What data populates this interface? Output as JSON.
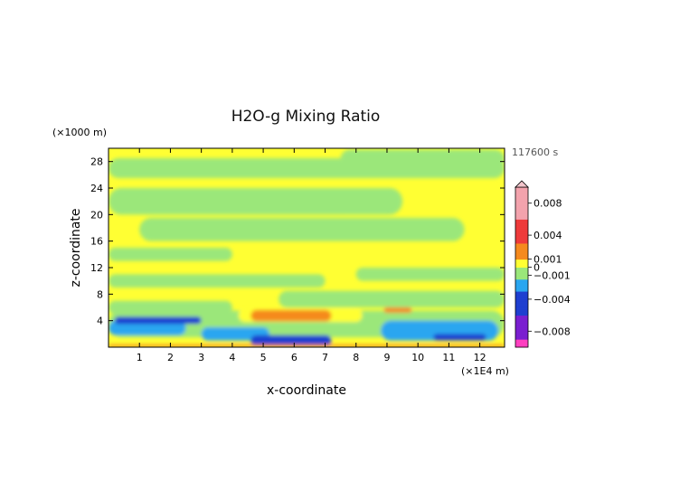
{
  "chart_data": {
    "type": "heatmap",
    "title": "H2O-g Mixing Ratio",
    "xlabel": "x-coordinate",
    "ylabel": "z-coordinate",
    "x_unit": "(×1E4 m)",
    "y_unit": "(×1000 m)",
    "time_label": "117600 s",
    "xlim": [
      0,
      12.8
    ],
    "ylim": [
      0,
      30
    ],
    "x_ticks": [
      1,
      2,
      3,
      4,
      5,
      6,
      7,
      8,
      9,
      10,
      11,
      12
    ],
    "y_ticks": [
      4,
      8,
      12,
      16,
      20,
      24,
      28
    ],
    "colorbar": {
      "range": [
        -0.01,
        0.01
      ],
      "tick_values": [
        0.008,
        0.004,
        0.001,
        0,
        -0.001,
        -0.004,
        -0.008
      ],
      "tick_labels": [
        "0.008",
        "0.004",
        "0.001",
        "0",
        "−0.001",
        "−0.004",
        "−0.008"
      ],
      "colors": {
        "pos_high": "#f3a3ad",
        "pos_mid": "#ee3b3b",
        "pos_low": "#f58a1e",
        "near_zero_pos": "#ffff33",
        "near_zero_neg": "#9be77a",
        "neg_low": "#2aa6f0",
        "neg_mid": "#1f3fd0",
        "neg_high": "#7a1fd0",
        "neg_max": "#ff3fc0"
      }
    },
    "background_value": 0.0003,
    "regions": [
      {
        "x": [
          0.0,
          12.8
        ],
        "z": [
          25.5,
          28.5
        ],
        "value": -0.0005
      },
      {
        "x": [
          7.5,
          12.8
        ],
        "z": [
          27.0,
          29.8
        ],
        "value": -0.0005
      },
      {
        "x": [
          0.0,
          9.5
        ],
        "z": [
          20.0,
          24.0
        ],
        "value": -0.0005
      },
      {
        "x": [
          1.0,
          11.5
        ],
        "z": [
          16.0,
          19.5
        ],
        "value": -0.0005
      },
      {
        "x": [
          0.0,
          4.0
        ],
        "z": [
          13.0,
          15.0
        ],
        "value": -0.0005
      },
      {
        "x": [
          0.0,
          7.0
        ],
        "z": [
          9.0,
          11.0
        ],
        "value": -0.0005
      },
      {
        "x": [
          8.0,
          12.8
        ],
        "z": [
          10.0,
          12.0
        ],
        "value": -0.0005
      },
      {
        "x": [
          5.5,
          12.8
        ],
        "z": [
          6.0,
          8.5
        ],
        "value": -0.0005
      },
      {
        "x": [
          0.0,
          4.0
        ],
        "z": [
          5.0,
          7.0
        ],
        "value": -0.0005
      },
      {
        "x": [
          0.0,
          12.8
        ],
        "z": [
          1.5,
          5.5
        ],
        "value": -0.0005
      },
      {
        "x": [
          0.0,
          2.5
        ],
        "z": [
          1.8,
          4.0
        ],
        "value": -0.002
      },
      {
        "x": [
          3.0,
          5.2
        ],
        "z": [
          1.0,
          3.0
        ],
        "value": -0.002
      },
      {
        "x": [
          8.8,
          12.6
        ],
        "z": [
          1.0,
          4.0
        ],
        "value": -0.002
      },
      {
        "x": [
          0.2,
          3.0
        ],
        "z": [
          3.5,
          4.6
        ],
        "value": -0.0035
      },
      {
        "x": [
          10.5,
          12.2
        ],
        "z": [
          1.0,
          2.0
        ],
        "value": -0.0035
      },
      {
        "x": [
          4.6,
          7.2
        ],
        "z": [
          0.2,
          1.8
        ],
        "value": -0.003
      },
      {
        "x": [
          4.2,
          8.2
        ],
        "z": [
          3.8,
          5.8
        ],
        "value": 0.0009
      },
      {
        "x": [
          4.6,
          7.2
        ],
        "z": [
          3.9,
          5.6
        ],
        "value": 0.0015
      },
      {
        "x": [
          8.9,
          9.8
        ],
        "z": [
          5.2,
          6.0
        ],
        "value": 0.0012
      },
      {
        "x": [
          0.0,
          12.8
        ],
        "z": [
          0.0,
          0.4
        ],
        "value": 0.001
      }
    ]
  }
}
